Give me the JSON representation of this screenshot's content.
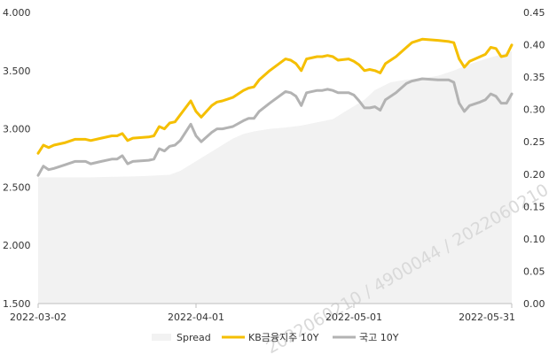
{
  "chart_data": {
    "type": "line",
    "title": "",
    "xlabel": "",
    "ylabel": "",
    "left_axis": {
      "ylim": [
        1.5,
        4.0
      ],
      "ticks": [
        "4.000",
        "3.500",
        "3.000",
        "2.500",
        "2.000",
        "1.500"
      ],
      "tick_values": [
        4.0,
        3.5,
        3.0,
        2.5,
        2.0,
        1.5
      ]
    },
    "right_axis": {
      "ylim": [
        0.0,
        0.45
      ],
      "ticks": [
        "0.45",
        "0.40",
        "0.35",
        "0.30",
        "0.25",
        "0.20",
        "0.15",
        "0.10",
        "0.05",
        "0.00"
      ],
      "tick_values": [
        0.45,
        0.4,
        0.35,
        0.3,
        0.25,
        0.2,
        0.15,
        0.1,
        0.05,
        0.0
      ]
    },
    "x_axis": {
      "range": [
        "2022-03-02",
        "2022-05-31"
      ],
      "tick_labels": [
        "2022-03-02",
        "2022-04-01",
        "2022-05-01",
        "2022-05-31"
      ]
    },
    "grid": false,
    "legend_position": "bottom",
    "colors": {
      "spread": "#f2f2f2",
      "kb": "#f5bf00",
      "gov": "#b3b3b3"
    },
    "watermark": "2022060210 / 4900044 / 2022060210",
    "series": [
      {
        "name": "Spread",
        "type": "area",
        "axis": "right",
        "points": [
          [
            "2022-03-02",
            0.195
          ],
          [
            "2022-03-07",
            0.195
          ],
          [
            "2022-03-12",
            0.195
          ],
          [
            "2022-03-17",
            0.196
          ],
          [
            "2022-03-22",
            0.197
          ],
          [
            "2022-03-27",
            0.199
          ],
          [
            "2022-03-29",
            0.205
          ],
          [
            "2022-03-31",
            0.215
          ],
          [
            "2022-04-02",
            0.225
          ],
          [
            "2022-04-04",
            0.235
          ],
          [
            "2022-04-06",
            0.245
          ],
          [
            "2022-04-08",
            0.255
          ],
          [
            "2022-04-10",
            0.262
          ],
          [
            "2022-04-12",
            0.266
          ],
          [
            "2022-04-15",
            0.27
          ],
          [
            "2022-04-18",
            0.272
          ],
          [
            "2022-04-21",
            0.275
          ],
          [
            "2022-04-24",
            0.28
          ],
          [
            "2022-04-27",
            0.285
          ],
          [
            "2022-04-29",
            0.295
          ],
          [
            "2022-05-01",
            0.305
          ],
          [
            "2022-05-03",
            0.315
          ],
          [
            "2022-05-05",
            0.33
          ],
          [
            "2022-05-08",
            0.342
          ],
          [
            "2022-05-11",
            0.346
          ],
          [
            "2022-05-14",
            0.348
          ],
          [
            "2022-05-17",
            0.352
          ],
          [
            "2022-05-20",
            0.36
          ],
          [
            "2022-05-23",
            0.37
          ],
          [
            "2022-05-26",
            0.378
          ],
          [
            "2022-05-29",
            0.385
          ],
          [
            "2022-05-31",
            0.39
          ]
        ]
      },
      {
        "name": "KB금융지주 10Y",
        "type": "line",
        "axis": "left",
        "points": [
          [
            "2022-03-02",
            2.79
          ],
          [
            "2022-03-03",
            2.86
          ],
          [
            "2022-03-04",
            2.84
          ],
          [
            "2022-03-05",
            2.86
          ],
          [
            "2022-03-07",
            2.88
          ],
          [
            "2022-03-09",
            2.91
          ],
          [
            "2022-03-11",
            2.91
          ],
          [
            "2022-03-12",
            2.9
          ],
          [
            "2022-03-14",
            2.92
          ],
          [
            "2022-03-16",
            2.94
          ],
          [
            "2022-03-17",
            2.94
          ],
          [
            "2022-03-18",
            2.96
          ],
          [
            "2022-03-19",
            2.9
          ],
          [
            "2022-03-20",
            2.92
          ],
          [
            "2022-03-23",
            2.93
          ],
          [
            "2022-03-24",
            2.94
          ],
          [
            "2022-03-25",
            3.02
          ],
          [
            "2022-03-26",
            3.0
          ],
          [
            "2022-03-27",
            3.05
          ],
          [
            "2022-03-28",
            3.06
          ],
          [
            "2022-03-29",
            3.12
          ],
          [
            "2022-03-31",
            3.24
          ],
          [
            "2022-04-01",
            3.15
          ],
          [
            "2022-04-02",
            3.1
          ],
          [
            "2022-04-04",
            3.2
          ],
          [
            "2022-04-05",
            3.23
          ],
          [
            "2022-04-06",
            3.24
          ],
          [
            "2022-04-08",
            3.27
          ],
          [
            "2022-04-10",
            3.33
          ],
          [
            "2022-04-11",
            3.35
          ],
          [
            "2022-04-12",
            3.36
          ],
          [
            "2022-04-13",
            3.42
          ],
          [
            "2022-04-15",
            3.5
          ],
          [
            "2022-04-18",
            3.6
          ],
          [
            "2022-04-19",
            3.59
          ],
          [
            "2022-04-20",
            3.56
          ],
          [
            "2022-04-21",
            3.5
          ],
          [
            "2022-04-22",
            3.6
          ],
          [
            "2022-04-24",
            3.62
          ],
          [
            "2022-04-25",
            3.62
          ],
          [
            "2022-04-26",
            3.63
          ],
          [
            "2022-04-27",
            3.62
          ],
          [
            "2022-04-28",
            3.59
          ],
          [
            "2022-04-30",
            3.6
          ],
          [
            "2022-05-01",
            3.58
          ],
          [
            "2022-05-02",
            3.55
          ],
          [
            "2022-05-03",
            3.5
          ],
          [
            "2022-05-04",
            3.51
          ],
          [
            "2022-05-05",
            3.5
          ],
          [
            "2022-05-06",
            3.48
          ],
          [
            "2022-05-07",
            3.56
          ],
          [
            "2022-05-09",
            3.62
          ],
          [
            "2022-05-11",
            3.7
          ],
          [
            "2022-05-12",
            3.74
          ],
          [
            "2022-05-14",
            3.77
          ],
          [
            "2022-05-17",
            3.76
          ],
          [
            "2022-05-19",
            3.75
          ],
          [
            "2022-05-20",
            3.74
          ],
          [
            "2022-05-21",
            3.6
          ],
          [
            "2022-05-22",
            3.53
          ],
          [
            "2022-05-23",
            3.58
          ],
          [
            "2022-05-25",
            3.62
          ],
          [
            "2022-05-26",
            3.64
          ],
          [
            "2022-05-27",
            3.7
          ],
          [
            "2022-05-28",
            3.69
          ],
          [
            "2022-05-29",
            3.62
          ],
          [
            "2022-05-30",
            3.63
          ],
          [
            "2022-05-31",
            3.72
          ]
        ]
      },
      {
        "name": "국고 10Y",
        "type": "line",
        "axis": "left",
        "points": [
          [
            "2022-03-02",
            2.6
          ],
          [
            "2022-03-03",
            2.68
          ],
          [
            "2022-03-04",
            2.65
          ],
          [
            "2022-03-05",
            2.66
          ],
          [
            "2022-03-07",
            2.69
          ],
          [
            "2022-03-09",
            2.72
          ],
          [
            "2022-03-11",
            2.72
          ],
          [
            "2022-03-12",
            2.7
          ],
          [
            "2022-03-14",
            2.72
          ],
          [
            "2022-03-16",
            2.74
          ],
          [
            "2022-03-17",
            2.74
          ],
          [
            "2022-03-18",
            2.77
          ],
          [
            "2022-03-19",
            2.7
          ],
          [
            "2022-03-20",
            2.72
          ],
          [
            "2022-03-23",
            2.73
          ],
          [
            "2022-03-24",
            2.74
          ],
          [
            "2022-03-25",
            2.83
          ],
          [
            "2022-03-26",
            2.81
          ],
          [
            "2022-03-27",
            2.85
          ],
          [
            "2022-03-28",
            2.86
          ],
          [
            "2022-03-29",
            2.9
          ],
          [
            "2022-03-31",
            3.04
          ],
          [
            "2022-04-01",
            2.94
          ],
          [
            "2022-04-02",
            2.89
          ],
          [
            "2022-04-04",
            2.97
          ],
          [
            "2022-04-05",
            3.0
          ],
          [
            "2022-04-06",
            3.0
          ],
          [
            "2022-04-08",
            3.02
          ],
          [
            "2022-04-10",
            3.07
          ],
          [
            "2022-04-11",
            3.09
          ],
          [
            "2022-04-12",
            3.09
          ],
          [
            "2022-04-13",
            3.15
          ],
          [
            "2022-04-15",
            3.22
          ],
          [
            "2022-04-18",
            3.32
          ],
          [
            "2022-04-19",
            3.31
          ],
          [
            "2022-04-20",
            3.28
          ],
          [
            "2022-04-21",
            3.2
          ],
          [
            "2022-04-22",
            3.31
          ],
          [
            "2022-04-24",
            3.33
          ],
          [
            "2022-04-25",
            3.33
          ],
          [
            "2022-04-26",
            3.34
          ],
          [
            "2022-04-27",
            3.33
          ],
          [
            "2022-04-28",
            3.31
          ],
          [
            "2022-04-30",
            3.31
          ],
          [
            "2022-05-01",
            3.29
          ],
          [
            "2022-05-02",
            3.24
          ],
          [
            "2022-05-03",
            3.18
          ],
          [
            "2022-05-04",
            3.18
          ],
          [
            "2022-05-05",
            3.19
          ],
          [
            "2022-05-06",
            3.16
          ],
          [
            "2022-05-07",
            3.25
          ],
          [
            "2022-05-09",
            3.31
          ],
          [
            "2022-05-11",
            3.39
          ],
          [
            "2022-05-12",
            3.41
          ],
          [
            "2022-05-14",
            3.43
          ],
          [
            "2022-05-17",
            3.42
          ],
          [
            "2022-05-19",
            3.42
          ],
          [
            "2022-05-20",
            3.4
          ],
          [
            "2022-05-21",
            3.22
          ],
          [
            "2022-05-22",
            3.15
          ],
          [
            "2022-05-23",
            3.2
          ],
          [
            "2022-05-25",
            3.23
          ],
          [
            "2022-05-26",
            3.25
          ],
          [
            "2022-05-27",
            3.3
          ],
          [
            "2022-05-28",
            3.28
          ],
          [
            "2022-05-29",
            3.22
          ],
          [
            "2022-05-30",
            3.22
          ],
          [
            "2022-05-31",
            3.3
          ]
        ]
      }
    ]
  }
}
